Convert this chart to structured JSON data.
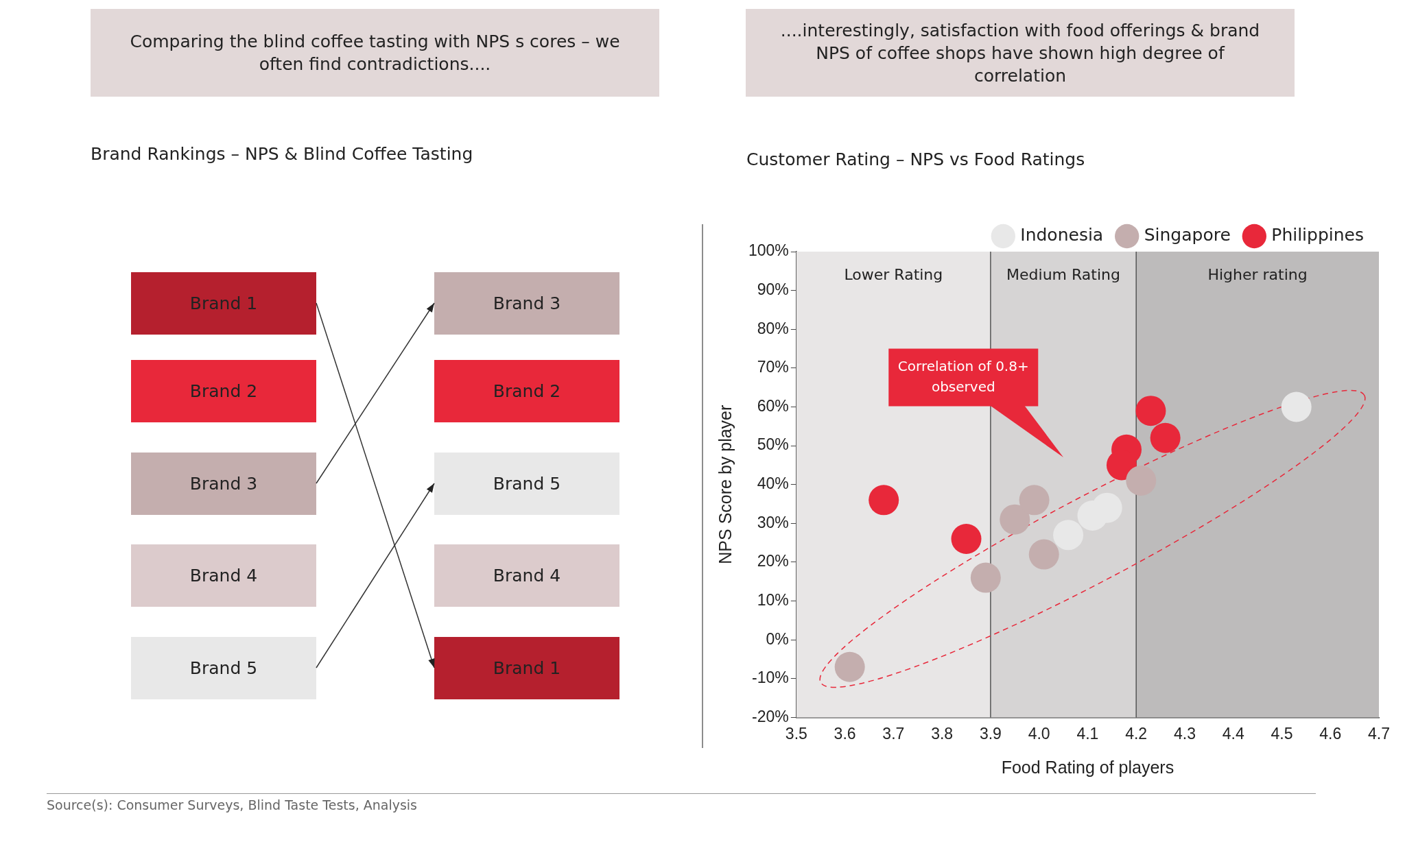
{
  "chart_data": [
    {
      "type": "other",
      "title": "Brand Rankings – NPS & Blind Coffee Tasting",
      "subtitle": "Comparing the blind coffee tasting with NPS s cores – we often find contradictions....",
      "annotations": [
        "Brand 1",
        "Brand 2",
        "Brand 3",
        "Brand 4",
        "Brand 5",
        "Brand 3",
        "Brand 2",
        "Brand 5",
        "Brand 4",
        "Brand 1"
      ],
      "colors": [
        "#b5202e",
        "#e8283a",
        "#c4aeae",
        "#dccbcc",
        "#e8e8e8",
        "#c4aeae",
        "#e8283a",
        "#e8e8e8",
        "#dccbcc",
        "#b5202e"
      ]
    },
    {
      "type": "scatter",
      "title": "Customer Rating – NPS vs Food Ratings",
      "subtitle": "....interestingly, satisfaction with food offerings & brand NPS of coffee shops have shown high degree of correlation",
      "xlabel": "Food Rating of players",
      "ylabel": "NPS Score by player",
      "xlim": [
        3.5,
        4.7
      ],
      "xticks": [
        3.5,
        3.6,
        3.7,
        3.8,
        3.9,
        {
          "value": 4,
          "label": "4.0"
        },
        4.1,
        4.2,
        4.3,
        4.4,
        4.5,
        4.6,
        4.7
      ],
      "ylim": [
        -20,
        100
      ],
      "yticks": [
        {
          "value": -20,
          "label": "-20%"
        },
        {
          "value": -10,
          "label": "-10%"
        },
        {
          "value": 0,
          "label": "0%"
        },
        {
          "value": 10,
          "label": "10%"
        },
        {
          "value": 20,
          "label": "20%"
        },
        {
          "value": 30,
          "label": "30%"
        },
        {
          "value": 40,
          "label": "40%"
        },
        {
          "value": 50,
          "label": "50%"
        },
        {
          "value": 60,
          "label": "60%"
        },
        {
          "value": 70,
          "label": "70%"
        },
        {
          "value": 80,
          "label": "80%"
        },
        {
          "value": 90,
          "label": "90%"
        },
        {
          "value": 100,
          "label": "100%"
        }
      ],
      "bands": [
        {
          "axis": "x",
          "from": 3.5,
          "to": 3.9,
          "label": "Lower Rating",
          "color": "#e8e6e6"
        },
        {
          "axis": "x",
          "from": 3.9,
          "to": 4.2,
          "label": "Medium Rating",
          "color": "#d6d4d4"
        },
        {
          "axis": "x",
          "from": 4.2,
          "to": 4.7,
          "label": "Higher rating",
          "color": "#bdbbbb"
        }
      ],
      "series": [
        {
          "name": "Indonesia",
          "color": "#e8e8e8",
          "x": [
            4.53,
            4.06,
            4.11,
            4.14
          ],
          "values": [
            60,
            27,
            32,
            34
          ]
        },
        {
          "name": "Singapore",
          "color": "#c4aeae",
          "x": [
            3.61,
            3.89,
            3.95,
            3.99,
            4.01,
            4.21
          ],
          "values": [
            -7,
            16,
            31,
            36,
            22,
            41
          ]
        },
        {
          "name": "Philippines",
          "color": "#e8283a",
          "x": [
            3.68,
            3.85,
            4.23,
            4.26,
            4.18,
            4.17
          ],
          "values": [
            36,
            26,
            59,
            52,
            49,
            45
          ]
        }
      ],
      "ref_lines": [
        {
          "axis": "x",
          "value": 3.9,
          "color": "#555555"
        },
        {
          "axis": "x",
          "value": 4.2,
          "color": "#555555"
        }
      ],
      "legend": "top right",
      "marker": "circle",
      "grid": false,
      "annotations": [
        "Correlation of 0.8+ observed",
        "Source(s): Consumer Surveys, Blind Taste Tests, Analysis"
      ]
    }
  ]
}
